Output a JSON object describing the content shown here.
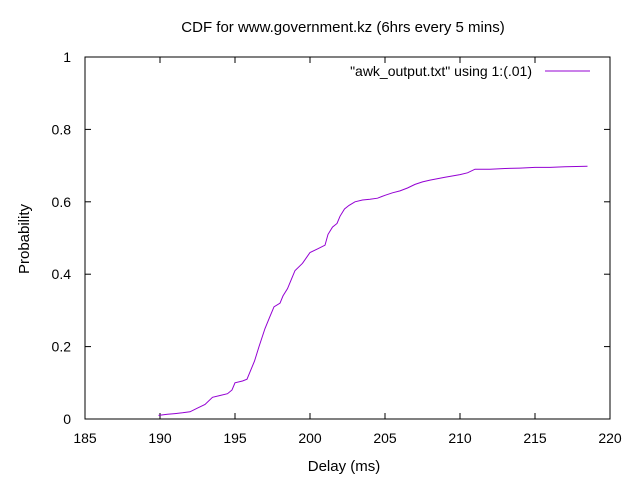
{
  "chart_data": {
    "type": "line",
    "title": "CDF for www.government.kz (6hrs every 5 mins)",
    "xlabel": "Delay (ms)",
    "ylabel": "Probability",
    "xlim": [
      185,
      220
    ],
    "ylim": [
      0,
      1
    ],
    "xticks": [
      185,
      190,
      195,
      200,
      205,
      210,
      215,
      220
    ],
    "yticks": [
      0,
      0.2,
      0.4,
      0.6,
      0.8,
      1
    ],
    "ytick_labels": [
      "0",
      "0.2",
      "0.4",
      "0.6",
      "0.8",
      "1"
    ],
    "grid": false,
    "legend_position": "top-right",
    "series": [
      {
        "name": "\"awk_output.txt\" using 1:(.01)",
        "color": "#9400d3",
        "x": [
          189.9,
          190.5,
          191.0,
          191.5,
          192.0,
          192.5,
          193.0,
          193.5,
          194.0,
          194.5,
          194.8,
          195.0,
          195.5,
          195.8,
          196.0,
          196.3,
          196.6,
          197.0,
          197.3,
          197.6,
          198.0,
          198.2,
          198.5,
          198.8,
          199.0,
          199.5,
          200.0,
          200.5,
          201.0,
          201.2,
          201.5,
          201.8,
          202.0,
          202.3,
          202.6,
          203.0,
          203.5,
          204.0,
          204.5,
          205.0,
          205.5,
          206.0,
          206.5,
          207.0,
          207.5,
          208.0,
          209.0,
          210.0,
          210.5,
          211.0,
          211.5,
          212.0,
          213.0,
          214.0,
          215.0,
          216.0,
          217.0,
          218.5
        ],
        "y": [
          0.01,
          0.013,
          0.015,
          0.017,
          0.02,
          0.03,
          0.04,
          0.06,
          0.065,
          0.07,
          0.08,
          0.1,
          0.105,
          0.11,
          0.13,
          0.16,
          0.2,
          0.25,
          0.28,
          0.31,
          0.32,
          0.34,
          0.36,
          0.39,
          0.41,
          0.43,
          0.46,
          0.47,
          0.48,
          0.51,
          0.53,
          0.54,
          0.56,
          0.58,
          0.59,
          0.6,
          0.605,
          0.607,
          0.61,
          0.618,
          0.625,
          0.63,
          0.638,
          0.648,
          0.655,
          0.66,
          0.668,
          0.675,
          0.68,
          0.69,
          0.69,
          0.69,
          0.692,
          0.693,
          0.695,
          0.695,
          0.697,
          0.698
        ]
      }
    ]
  }
}
